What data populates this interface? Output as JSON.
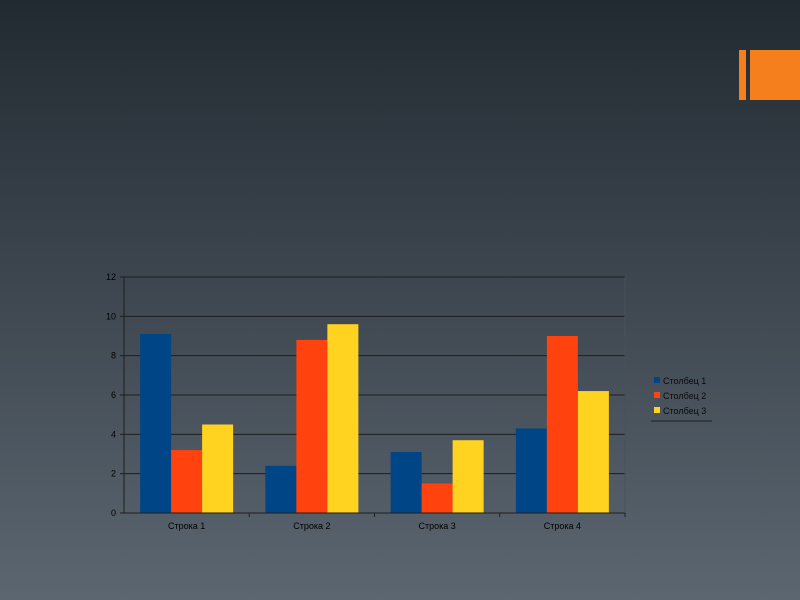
{
  "slide": {
    "accent_color": "#f57f1c"
  },
  "chart_data": {
    "type": "bar",
    "title": "",
    "xlabel": "",
    "ylabel": "",
    "categories": [
      "Строка 1",
      "Строка 2",
      "Строка 3",
      "Строка 4"
    ],
    "series": [
      {
        "name": "Столбец 1",
        "color": "#004586",
        "values": [
          9.1,
          2.4,
          3.1,
          4.3
        ]
      },
      {
        "name": "Столбец 2",
        "color": "#ff420e",
        "values": [
          3.2,
          8.8,
          1.5,
          9.0
        ]
      },
      {
        "name": "Столбец 3",
        "color": "#ffd320",
        "values": [
          4.5,
          9.6,
          3.7,
          6.2
        ]
      }
    ],
    "ylim": [
      0,
      12
    ],
    "yticks": [
      0,
      2,
      4,
      6,
      8,
      10,
      12
    ],
    "grid": true,
    "legend_position": "right"
  }
}
